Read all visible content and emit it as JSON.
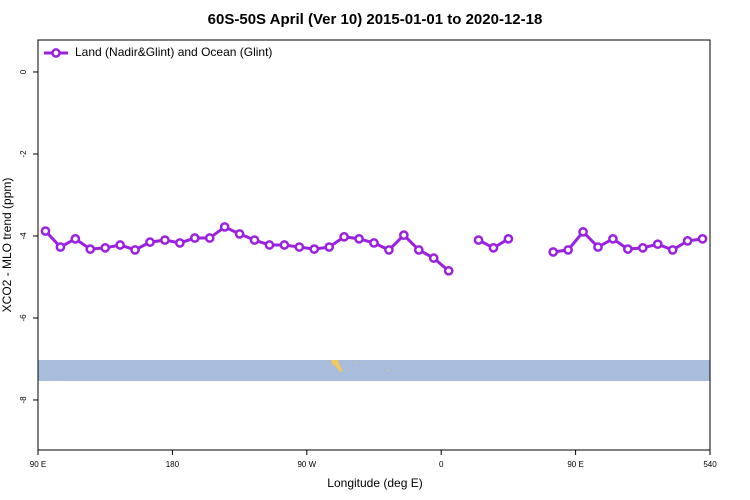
{
  "chart_data": {
    "type": "line",
    "title": "60S-50S April (Ver 10)   2015-01-01 to 2020-12-18",
    "xlabel": "Longitude (deg E)",
    "ylabel": "XCO2 - MLO trend (ppm)",
    "x": [
      95,
      105,
      115,
      125,
      135,
      145,
      155,
      165,
      175,
      185,
      195,
      205,
      215,
      225,
      235,
      245,
      255,
      265,
      275,
      285,
      295,
      305,
      315,
      325,
      335,
      345,
      355,
      365,
      375,
      385,
      395,
      405,
      415,
      425,
      435,
      445,
      455,
      465,
      475,
      485,
      495,
      505,
      515,
      525,
      535
    ],
    "series": [
      {
        "name": "Land (Nadir&Glint) and Ocean (Glint)",
        "color": "#9b20e0",
        "values": [
          -3.88,
          -4.27,
          -4.07,
          -4.32,
          -4.29,
          -4.22,
          -4.34,
          -4.15,
          -4.1,
          -4.17,
          -4.05,
          -4.05,
          -3.78,
          -3.95,
          -4.1,
          -4.22,
          -4.22,
          -4.27,
          -4.32,
          -4.27,
          -4.02,
          -4.07,
          -4.17,
          -4.34,
          -3.98,
          -4.34,
          -4.54,
          -4.85,
          null,
          -4.1,
          -4.29,
          -4.07,
          null,
          null,
          -4.39,
          -4.34,
          -3.9,
          -4.27,
          -4.07,
          -4.32,
          -4.29,
          -4.2,
          -4.34,
          -4.12,
          -4.07
        ]
      }
    ],
    "xlim": [
      90,
      540
    ],
    "xticks": [
      {
        "value": 90,
        "label": "90 E"
      },
      180,
      {
        "value": 270,
        "label": "90 W"
      },
      {
        "value": 360,
        "label": "0"
      },
      {
        "value": 450,
        "label": "90 E"
      },
      540
    ],
    "ylim": [
      -9.22,
      0.78
    ],
    "yticks": [
      0,
      -2,
      -4,
      -6,
      -8
    ],
    "legend": "top-left"
  }
}
